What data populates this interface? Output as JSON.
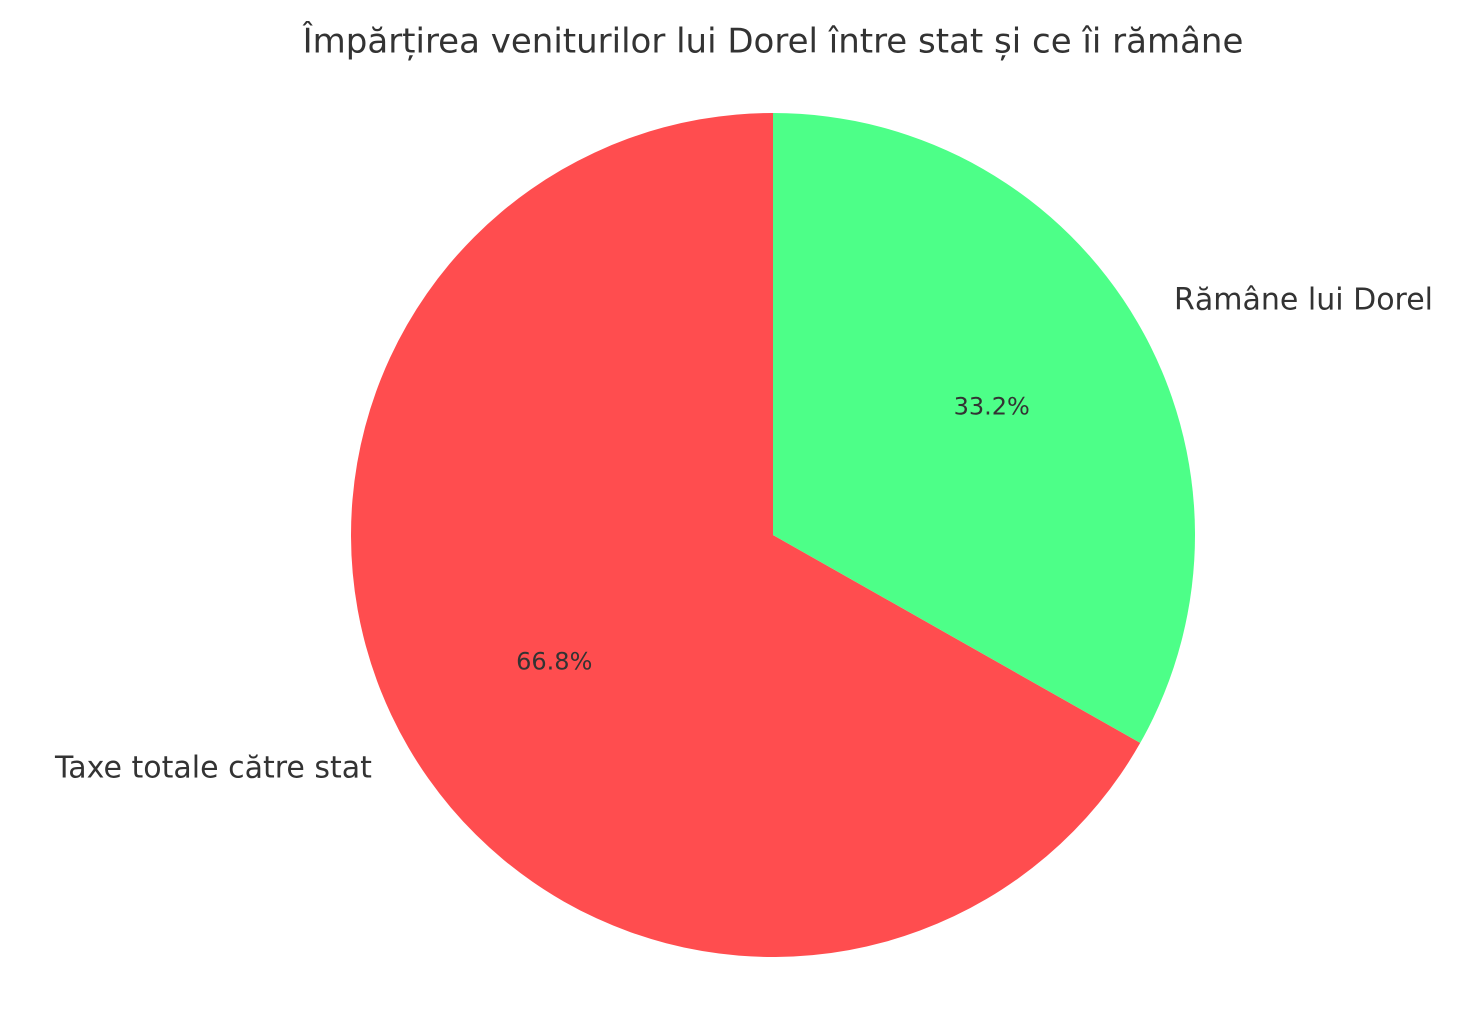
{
  "chart_data": {
    "type": "pie",
    "title": "Împărțirea veniturilor lui Dorel între stat și ce îi rămâne",
    "categories": [
      "Taxe totale către stat",
      "Rămâne lui Dorel"
    ],
    "values": [
      66.8,
      33.2
    ],
    "value_labels": [
      "66.8%",
      "33.2%"
    ],
    "colors": [
      "#ff4d4f",
      "#4dff88"
    ],
    "start_angle": 90,
    "direction": "counterclockwise"
  }
}
